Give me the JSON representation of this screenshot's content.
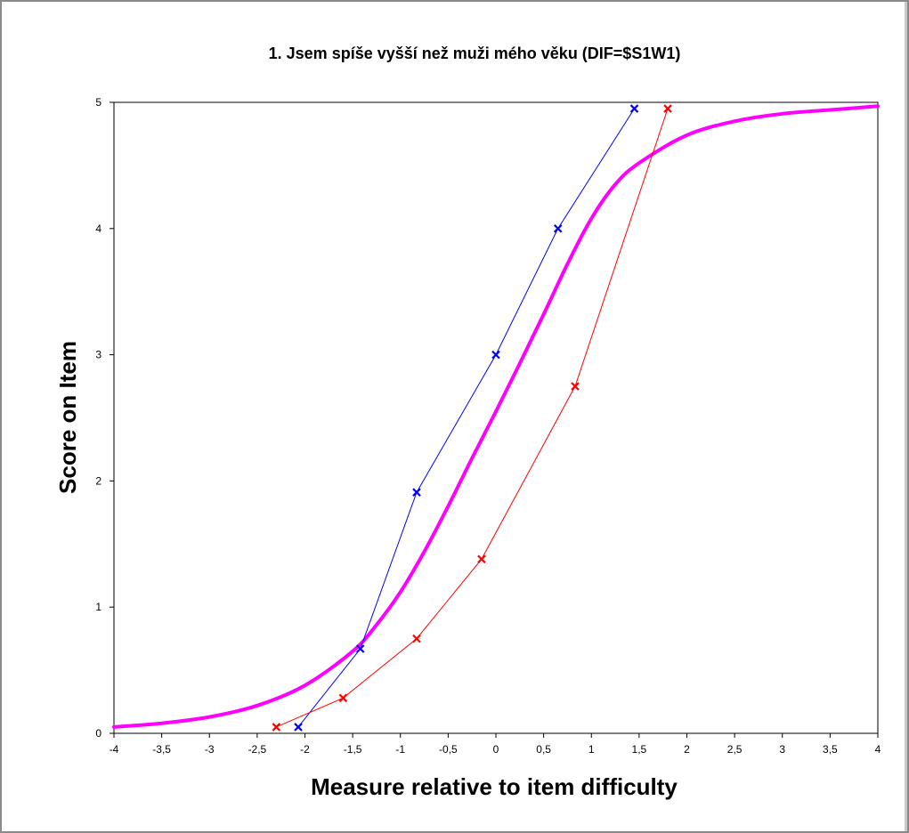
{
  "chart_data": {
    "type": "line",
    "title": "1. Jsem spíše vyšší než muži mého věku  (DIF=$S1W1)",
    "xlabel": "Measure relative to item difficulty",
    "ylabel": "Score on Item",
    "xlim": [
      -4,
      4
    ],
    "ylim": [
      0,
      5
    ],
    "x_ticks": [
      -4,
      -3.5,
      -3,
      -2.5,
      -2,
      -1.5,
      -1,
      -0.5,
      0,
      0.5,
      1,
      1.5,
      2,
      2.5,
      3,
      3.5,
      4
    ],
    "x_tick_labels": [
      "-4",
      "-3,5",
      "-3",
      "-2,5",
      "-2",
      "-1,5",
      "-1",
      "-0,5",
      "0",
      "0,5",
      "1",
      "1,5",
      "2",
      "2,5",
      "3",
      "3,5",
      "4"
    ],
    "y_ticks": [
      0,
      1,
      2,
      3,
      4,
      5
    ],
    "y_tick_labels": [
      "0",
      "1",
      "2",
      "3",
      "4",
      "5"
    ],
    "grid": false,
    "series": [
      {
        "color": "#ff00ff",
        "marker": "none",
        "x": [
          -4,
          -3.5,
          -3,
          -2.5,
          -2,
          -1.5,
          -1.25,
          -1,
          -0.75,
          -0.5,
          -0.25,
          0,
          0.25,
          0.5,
          0.75,
          1,
          1.25,
          1.5,
          2,
          2.5,
          3,
          3.5,
          4
        ],
        "y": [
          0.05,
          0.08,
          0.13,
          0.22,
          0.38,
          0.65,
          0.86,
          1.12,
          1.44,
          1.8,
          2.18,
          2.55,
          2.93,
          3.32,
          3.72,
          4.08,
          4.35,
          4.52,
          4.74,
          4.85,
          4.91,
          4.94,
          4.97
        ]
      },
      {
        "color": "#0000ff",
        "marker": "x",
        "x": [
          -2.07,
          -1.42,
          -0.83,
          0.0,
          0.65,
          1.45
        ],
        "y": [
          0.05,
          0.67,
          1.91,
          3.0,
          4.0,
          4.95
        ]
      },
      {
        "color": "#ff0000",
        "marker": "x",
        "x": [
          -2.3,
          -1.6,
          -0.83,
          -0.15,
          0.83,
          1.8
        ],
        "y": [
          0.05,
          0.28,
          0.75,
          1.38,
          2.75,
          4.95
        ]
      }
    ]
  }
}
